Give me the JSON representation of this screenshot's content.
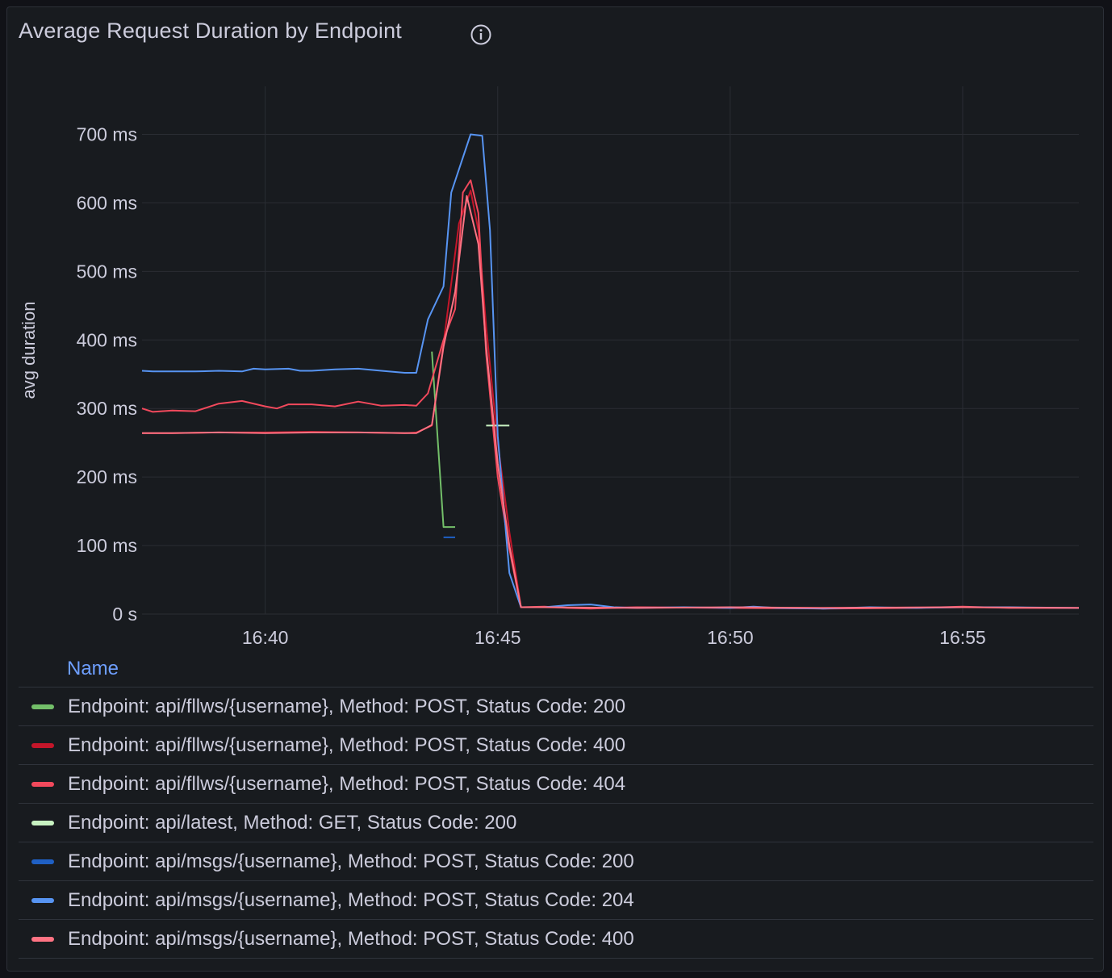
{
  "panel": {
    "title": "Average Request Duration by Endpoint",
    "info_icon": "info-icon"
  },
  "legend": {
    "header": "Name"
  },
  "chart_data": {
    "type": "line",
    "title": "Average Request Duration by Endpoint",
    "xlabel": "",
    "ylabel": "avg duration",
    "y_unit": "ms",
    "ylim": [
      0,
      770
    ],
    "xlim": [
      "16:37:21",
      "16:57:30"
    ],
    "x_ticks": [
      "16:40",
      "16:45",
      "16:50",
      "16:55"
    ],
    "y_ticks": [
      "0 s",
      "100 ms",
      "200 ms",
      "300 ms",
      "400 ms",
      "500 ms",
      "600 ms",
      "700 ms"
    ],
    "grid": true,
    "legend_position": "bottom",
    "series": [
      {
        "name": "Endpoint: api/fllws/{username}, Method: POST, Status Code: 200",
        "color": "#73bf69",
        "points": [
          [
            "16:43:35",
            383
          ],
          [
            "16:43:50",
            127
          ],
          [
            "16:44:05",
            127
          ]
        ]
      },
      {
        "name": "Endpoint: api/fllws/{username}, Method: POST, Status Code: 400",
        "color": "#c4162a",
        "points": [
          [
            "16:37:21",
            264
          ],
          [
            "16:38:00",
            264
          ],
          [
            "16:39:00",
            265
          ],
          [
            "16:40:00",
            265
          ],
          [
            "16:41:00",
            266
          ],
          [
            "16:42:00",
            265
          ],
          [
            "16:43:00",
            264
          ],
          [
            "16:43:15",
            265
          ],
          [
            "16:43:35",
            275
          ],
          [
            "16:43:50",
            395
          ],
          [
            "16:44:10",
            570
          ],
          [
            "16:44:25",
            618
          ],
          [
            "16:44:35",
            560
          ],
          [
            "16:44:45",
            420
          ],
          [
            "16:45:00",
            250
          ],
          [
            "16:45:15",
            120
          ],
          [
            "16:45:30",
            10
          ],
          [
            "16:46:00",
            10
          ],
          [
            "16:47:00",
            9
          ],
          [
            "16:48:00",
            10
          ],
          [
            "16:50:00",
            9
          ],
          [
            "16:52:00",
            9
          ],
          [
            "16:55:00",
            10
          ],
          [
            "16:57:30",
            9
          ]
        ]
      },
      {
        "name": "Endpoint: api/fllws/{username}, Method: POST, Status Code: 404",
        "color": "#f2495c",
        "points": [
          [
            "16:37:21",
            300
          ],
          [
            "16:37:35",
            295
          ],
          [
            "16:38:00",
            297
          ],
          [
            "16:38:30",
            296
          ],
          [
            "16:39:00",
            307
          ],
          [
            "16:39:30",
            311
          ],
          [
            "16:40:00",
            303
          ],
          [
            "16:40:15",
            300
          ],
          [
            "16:40:30",
            306
          ],
          [
            "16:41:00",
            306
          ],
          [
            "16:41:30",
            303
          ],
          [
            "16:42:00",
            310
          ],
          [
            "16:42:30",
            304
          ],
          [
            "16:43:00",
            305
          ],
          [
            "16:43:15",
            304
          ],
          [
            "16:43:30",
            322
          ],
          [
            "16:43:50",
            400
          ],
          [
            "16:44:05",
            445
          ],
          [
            "16:44:15",
            615
          ],
          [
            "16:44:25",
            633
          ],
          [
            "16:44:35",
            585
          ],
          [
            "16:44:45",
            380
          ],
          [
            "16:45:00",
            200
          ],
          [
            "16:45:15",
            95
          ],
          [
            "16:45:30",
            10
          ],
          [
            "16:46:00",
            11
          ],
          [
            "16:46:30",
            9
          ],
          [
            "16:47:00",
            8
          ],
          [
            "16:48:00",
            10
          ],
          [
            "16:50:00",
            9
          ],
          [
            "16:52:00",
            8
          ],
          [
            "16:54:00",
            9
          ],
          [
            "16:55:00",
            11
          ],
          [
            "16:56:00",
            9
          ],
          [
            "16:57:30",
            9
          ]
        ]
      },
      {
        "name": "Endpoint: api/latest, Method: GET, Status Code: 200",
        "color": "#c8f2c2",
        "points": [
          [
            "16:44:45",
            275
          ],
          [
            "16:45:15",
            275
          ]
        ]
      },
      {
        "name": "Endpoint: api/msgs/{username}, Method: POST, Status Code: 200",
        "color": "#1f60c4",
        "points": [
          [
            "16:43:50",
            112
          ],
          [
            "16:44:05",
            112
          ]
        ]
      },
      {
        "name": "Endpoint: api/msgs/{username}, Method: POST, Status Code: 204",
        "color": "#5794f2",
        "points": [
          [
            "16:37:21",
            355
          ],
          [
            "16:37:35",
            354
          ],
          [
            "16:38:30",
            354
          ],
          [
            "16:39:00",
            355
          ],
          [
            "16:39:30",
            354
          ],
          [
            "16:39:45",
            358
          ],
          [
            "16:40:00",
            357
          ],
          [
            "16:40:30",
            358
          ],
          [
            "16:40:45",
            355
          ],
          [
            "16:41:00",
            355
          ],
          [
            "16:41:30",
            357
          ],
          [
            "16:42:00",
            358
          ],
          [
            "16:42:30",
            355
          ],
          [
            "16:43:00",
            352
          ],
          [
            "16:43:15",
            352
          ],
          [
            "16:43:30",
            430
          ],
          [
            "16:43:50",
            478
          ],
          [
            "16:44:00",
            615
          ],
          [
            "16:44:25",
            700
          ],
          [
            "16:44:40",
            698
          ],
          [
            "16:44:50",
            560
          ],
          [
            "16:45:00",
            260
          ],
          [
            "16:45:15",
            60
          ],
          [
            "16:45:30",
            10
          ],
          [
            "16:46:00",
            10
          ],
          [
            "16:46:30",
            13
          ],
          [
            "16:47:00",
            14
          ],
          [
            "16:47:30",
            10
          ],
          [
            "16:48:00",
            9
          ],
          [
            "16:49:00",
            10
          ],
          [
            "16:50:00",
            9
          ],
          [
            "16:50:30",
            11
          ],
          [
            "16:51:00",
            9
          ],
          [
            "16:52:00",
            8
          ],
          [
            "16:53:00",
            10
          ],
          [
            "16:54:00",
            9
          ],
          [
            "16:55:00",
            10
          ],
          [
            "16:56:00",
            10
          ],
          [
            "16:57:30",
            9
          ]
        ]
      },
      {
        "name": "Endpoint: api/msgs/{username}, Method: POST, Status Code: 400",
        "color": "#ff7383",
        "points": [
          [
            "16:37:21",
            264
          ],
          [
            "16:38:00",
            264
          ],
          [
            "16:39:00",
            265
          ],
          [
            "16:40:00",
            264
          ],
          [
            "16:41:00",
            265
          ],
          [
            "16:42:00",
            265
          ],
          [
            "16:43:00",
            264
          ],
          [
            "16:43:15",
            264
          ],
          [
            "16:43:35",
            276
          ],
          [
            "16:43:50",
            390
          ],
          [
            "16:44:05",
            470
          ],
          [
            "16:44:20",
            610
          ],
          [
            "16:44:35",
            540
          ],
          [
            "16:44:45",
            390
          ],
          [
            "16:45:00",
            220
          ],
          [
            "16:45:15",
            100
          ],
          [
            "16:45:30",
            10
          ],
          [
            "16:46:00",
            10
          ],
          [
            "16:48:00",
            9
          ],
          [
            "16:50:00",
            10
          ],
          [
            "16:52:00",
            9
          ],
          [
            "16:55:00",
            10
          ],
          [
            "16:57:30",
            9
          ]
        ]
      }
    ]
  }
}
